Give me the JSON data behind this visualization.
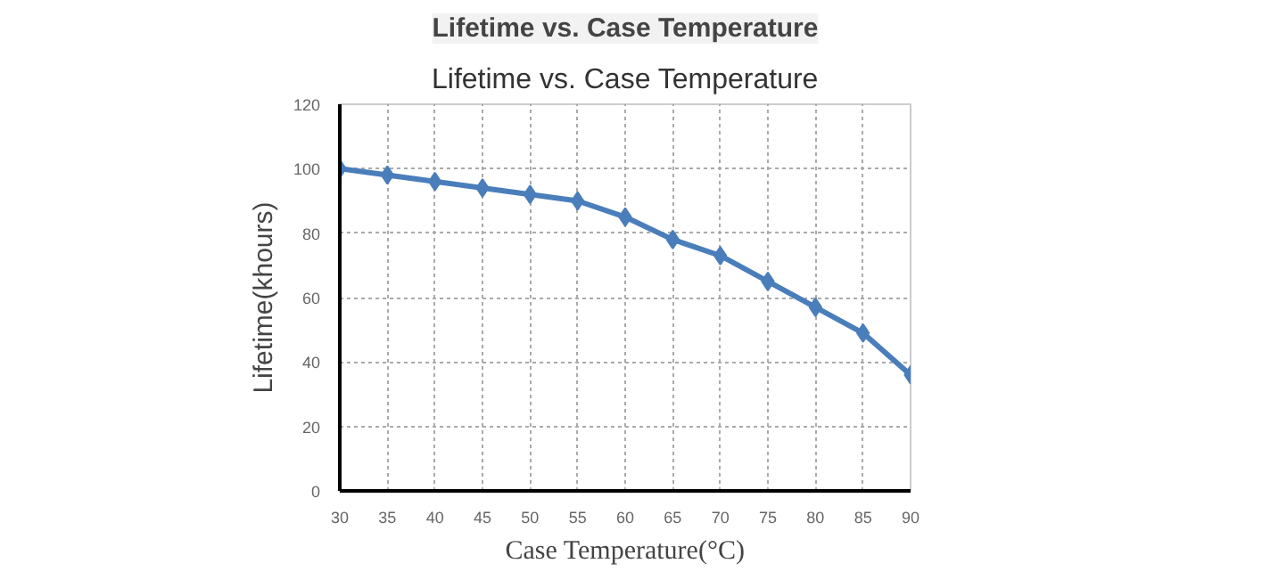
{
  "chart_data": {
    "type": "line",
    "title": "Lifetime vs. Case Temperature",
    "subtitle": "Lifetime vs. Case Temperature",
    "xlabel": "Case Temperature(°C)",
    "ylabel": "Lifetime(khours)",
    "x": [
      30,
      35,
      40,
      45,
      50,
      55,
      60,
      65,
      70,
      75,
      80,
      85,
      90
    ],
    "series": [
      {
        "color": "#4a7ebb",
        "values": [
          100,
          98,
          96,
          94,
          92,
          90,
          85,
          78,
          73,
          65,
          57,
          49,
          36
        ]
      }
    ],
    "xlim": [
      30,
      90
    ],
    "ylim": [
      0,
      120
    ],
    "xticks": [
      30,
      35,
      40,
      45,
      50,
      55,
      60,
      65,
      70,
      75,
      80,
      85,
      90
    ],
    "yticks": [
      0,
      20,
      40,
      60,
      80,
      100,
      120
    ],
    "grid": true,
    "marker": "diamond",
    "line_style": "solid"
  }
}
